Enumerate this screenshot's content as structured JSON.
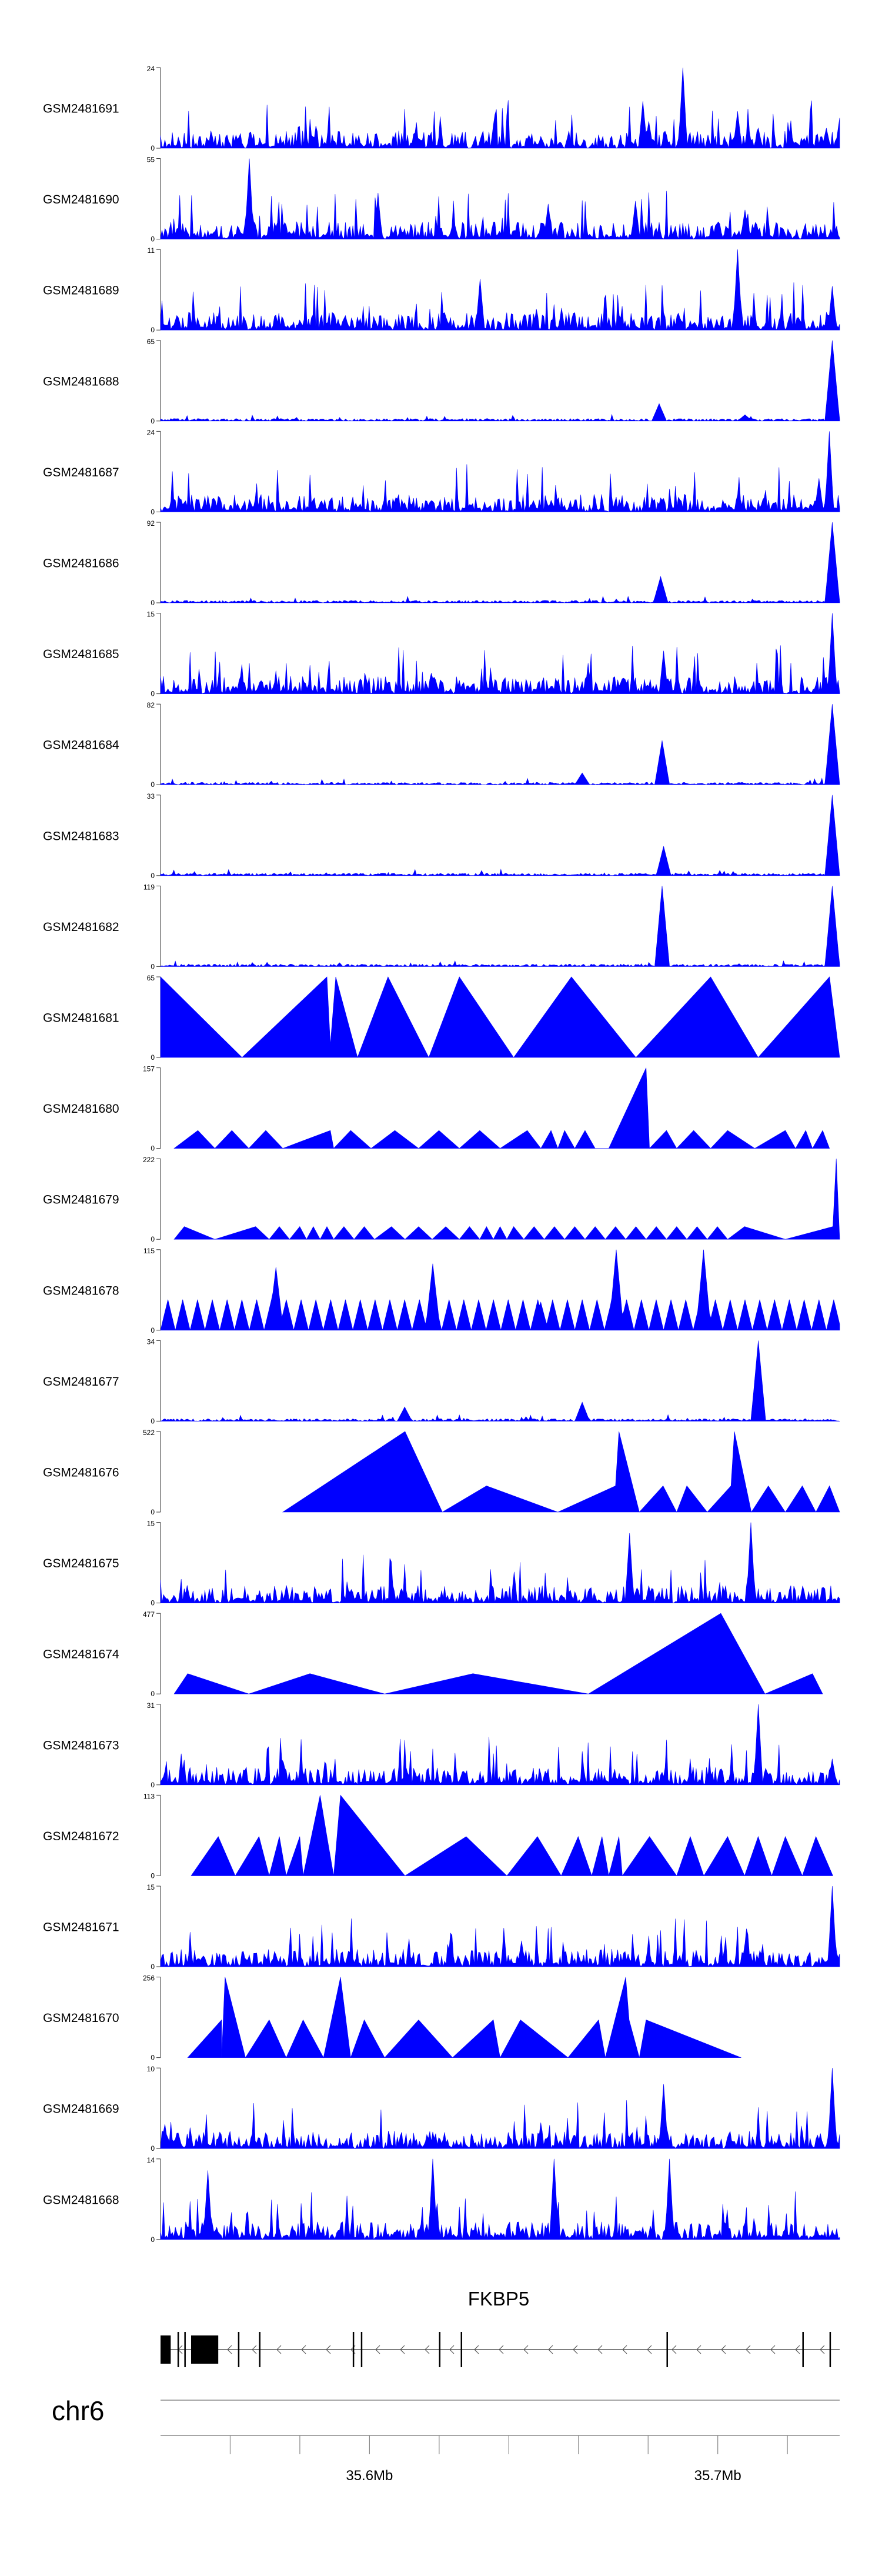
{
  "chart_data": {
    "type": "area",
    "fill_color": "#0000ff",
    "axis_color": "#333333",
    "region": {
      "chromosome": "chr6",
      "start": 35540000,
      "end": 35735000
    },
    "tracks": [
      {
        "name": "GSM2481691",
        "ymax": "24",
        "ymin": "0",
        "pattern": "noise",
        "peaks": [
          [
            0.71,
            14
          ],
          [
            0.72,
            8
          ],
          [
            0.77,
            24
          ],
          [
            0.85,
            11
          ],
          [
            0.88,
            6
          ],
          [
            0.98,
            6
          ],
          [
            1.0,
            9
          ]
        ]
      },
      {
        "name": "GSM2481690",
        "ymax": "55",
        "ymin": "0",
        "pattern": "noise",
        "peaks": [
          [
            0.13,
            55
          ],
          [
            0.32,
            30
          ],
          [
            0.57,
            24
          ],
          [
            0.7,
            26
          ],
          [
            0.86,
            20
          ]
        ]
      },
      {
        "name": "GSM2481689",
        "ymax": "11",
        "ymin": "0",
        "pattern": "noise",
        "peaks": [
          [
            0.47,
            7
          ],
          [
            0.85,
            11
          ],
          [
            0.99,
            6
          ]
        ]
      },
      {
        "name": "GSM2481688",
        "ymax": "65",
        "ymin": "0",
        "pattern": "sparse",
        "peaks": [
          [
            0.735,
            14
          ],
          [
            0.86,
            5
          ],
          [
            0.99,
            65
          ]
        ]
      },
      {
        "name": "GSM2481687",
        "ymax": "24",
        "ymin": "0",
        "pattern": "noise",
        "peaks": [
          [
            0.985,
            24
          ],
          [
            0.97,
            10
          ]
        ]
      },
      {
        "name": "GSM2481686",
        "ymax": "92",
        "ymin": "0",
        "pattern": "sparse",
        "peaks": [
          [
            0.737,
            30
          ],
          [
            0.99,
            92
          ]
        ]
      },
      {
        "name": "GSM2481685",
        "ymax": "15",
        "ymin": "0",
        "pattern": "noise",
        "peaks": [
          [
            0.74,
            8
          ],
          [
            0.99,
            15
          ]
        ]
      },
      {
        "name": "GSM2481684",
        "ymax": "82",
        "ymin": "0",
        "pattern": "sparse",
        "peaks": [
          [
            0.62,
            12
          ],
          [
            0.738,
            45
          ],
          [
            0.99,
            82
          ]
        ]
      },
      {
        "name": "GSM2481683",
        "ymax": "33",
        "ymin": "0",
        "pattern": "sparse",
        "peaks": [
          [
            0.74,
            12
          ],
          [
            0.99,
            33
          ]
        ]
      },
      {
        "name": "GSM2481682",
        "ymax": "119",
        "ymin": "0",
        "pattern": "sparse",
        "peaks": [
          [
            0.738,
            119
          ],
          [
            0.99,
            119
          ]
        ]
      },
      {
        "name": "GSM2481681",
        "ymax": "65",
        "ymin": "0",
        "pattern": "triangles",
        "vertices": [
          [
            0.0,
            65
          ],
          [
            0.12,
            0
          ],
          [
            0.245,
            65
          ],
          [
            0.25,
            10
          ],
          [
            0.258,
            65
          ],
          [
            0.29,
            0
          ],
          [
            0.335,
            65
          ],
          [
            0.395,
            0
          ],
          [
            0.44,
            65
          ],
          [
            0.52,
            0
          ],
          [
            0.605,
            65
          ],
          [
            0.7,
            0
          ],
          [
            0.81,
            65
          ],
          [
            0.88,
            0
          ],
          [
            0.985,
            65
          ],
          [
            1.0,
            0
          ]
        ]
      },
      {
        "name": "GSM2481680",
        "ymax": "157",
        "ymin": "0",
        "pattern": "triangles",
        "vertices": [
          [
            0.02,
            0
          ],
          [
            0.055,
            35
          ],
          [
            0.08,
            0
          ],
          [
            0.105,
            35
          ],
          [
            0.13,
            0
          ],
          [
            0.155,
            35
          ],
          [
            0.18,
            0
          ],
          [
            0.25,
            35
          ],
          [
            0.255,
            0
          ],
          [
            0.28,
            35
          ],
          [
            0.31,
            0
          ],
          [
            0.345,
            35
          ],
          [
            0.38,
            0
          ],
          [
            0.41,
            35
          ],
          [
            0.44,
            0
          ],
          [
            0.47,
            35
          ],
          [
            0.5,
            0
          ],
          [
            0.54,
            35
          ],
          [
            0.56,
            0
          ],
          [
            0.575,
            35
          ],
          [
            0.585,
            0
          ],
          [
            0.595,
            35
          ],
          [
            0.61,
            0
          ],
          [
            0.625,
            35
          ],
          [
            0.64,
            0
          ],
          [
            0.66,
            0
          ],
          [
            0.715,
            157
          ],
          [
            0.72,
            0
          ],
          [
            0.745,
            35
          ],
          [
            0.76,
            0
          ],
          [
            0.785,
            35
          ],
          [
            0.81,
            0
          ],
          [
            0.835,
            35
          ],
          [
            0.875,
            0
          ],
          [
            0.92,
            35
          ],
          [
            0.935,
            0
          ],
          [
            0.95,
            35
          ],
          [
            0.96,
            0
          ],
          [
            0.975,
            35
          ],
          [
            0.985,
            0
          ]
        ]
      },
      {
        "name": "GSM2481679",
        "ymax": "222",
        "ymin": "0",
        "pattern": "triangles",
        "vertices": [
          [
            0.02,
            0
          ],
          [
            0.035,
            35
          ],
          [
            0.08,
            0
          ],
          [
            0.14,
            35
          ],
          [
            0.16,
            0
          ],
          [
            0.175,
            35
          ],
          [
            0.19,
            0
          ],
          [
            0.205,
            35
          ],
          [
            0.215,
            0
          ],
          [
            0.225,
            35
          ],
          [
            0.235,
            0
          ],
          [
            0.245,
            35
          ],
          [
            0.255,
            0
          ],
          [
            0.27,
            35
          ],
          [
            0.285,
            0
          ],
          [
            0.3,
            35
          ],
          [
            0.315,
            0
          ],
          [
            0.34,
            35
          ],
          [
            0.36,
            0
          ],
          [
            0.38,
            35
          ],
          [
            0.4,
            0
          ],
          [
            0.42,
            35
          ],
          [
            0.44,
            0
          ],
          [
            0.455,
            35
          ],
          [
            0.47,
            0
          ],
          [
            0.48,
            35
          ],
          [
            0.49,
            0
          ],
          [
            0.5,
            35
          ],
          [
            0.51,
            0
          ],
          [
            0.52,
            35
          ],
          [
            0.535,
            0
          ],
          [
            0.55,
            35
          ],
          [
            0.565,
            0
          ],
          [
            0.58,
            35
          ],
          [
            0.595,
            0
          ],
          [
            0.61,
            35
          ],
          [
            0.625,
            0
          ],
          [
            0.64,
            35
          ],
          [
            0.655,
            0
          ],
          [
            0.67,
            35
          ],
          [
            0.685,
            0
          ],
          [
            0.7,
            35
          ],
          [
            0.715,
            0
          ],
          [
            0.73,
            35
          ],
          [
            0.745,
            0
          ],
          [
            0.76,
            35
          ],
          [
            0.775,
            0
          ],
          [
            0.79,
            35
          ],
          [
            0.805,
            0
          ],
          [
            0.82,
            35
          ],
          [
            0.835,
            0
          ],
          [
            0.86,
            35
          ],
          [
            0.92,
            0
          ],
          [
            0.99,
            35
          ],
          [
            0.995,
            222
          ],
          [
            1.0,
            0
          ]
        ]
      },
      {
        "name": "GSM2481678",
        "ymax": "115",
        "ymin": "0",
        "pattern": "triangles-dense",
        "peaks": [
          [
            0.17,
            90
          ],
          [
            0.4,
            95
          ],
          [
            0.56,
            40
          ],
          [
            0.67,
            115
          ],
          [
            0.8,
            115
          ]
        ]
      },
      {
        "name": "GSM2481677",
        "ymax": "34",
        "ymin": "0",
        "pattern": "sparse",
        "peaks": [
          [
            0.36,
            6
          ],
          [
            0.62,
            8
          ],
          [
            0.88,
            34
          ]
        ]
      },
      {
        "name": "GSM2481676",
        "ymax": "522",
        "ymin": "0",
        "pattern": "triangles",
        "vertices": [
          [
            0.18,
            0
          ],
          [
            0.36,
            522
          ],
          [
            0.415,
            0
          ],
          [
            0.48,
            170
          ],
          [
            0.585,
            0
          ],
          [
            0.67,
            170
          ],
          [
            0.675,
            522
          ],
          [
            0.705,
            0
          ],
          [
            0.74,
            170
          ],
          [
            0.76,
            0
          ],
          [
            0.775,
            170
          ],
          [
            0.805,
            0
          ],
          [
            0.84,
            170
          ],
          [
            0.845,
            522
          ],
          [
            0.87,
            0
          ],
          [
            0.895,
            170
          ],
          [
            0.92,
            0
          ],
          [
            0.945,
            170
          ],
          [
            0.965,
            0
          ],
          [
            0.985,
            170
          ],
          [
            1.0,
            0
          ]
        ]
      },
      {
        "name": "GSM2481675",
        "ymax": "15",
        "ymin": "0",
        "pattern": "noise",
        "peaks": [
          [
            0.87,
            15
          ],
          [
            0.69,
            13
          ]
        ]
      },
      {
        "name": "GSM2481674",
        "ymax": "477",
        "ymin": "0",
        "pattern": "triangles",
        "vertices": [
          [
            0.02,
            0
          ],
          [
            0.04,
            120
          ],
          [
            0.13,
            0
          ],
          [
            0.22,
            120
          ],
          [
            0.33,
            0
          ],
          [
            0.46,
            120
          ],
          [
            0.63,
            0
          ],
          [
            0.825,
            477
          ],
          [
            0.89,
            0
          ],
          [
            0.96,
            120
          ],
          [
            0.975,
            0
          ]
        ]
      },
      {
        "name": "GSM2481673",
        "ymax": "31",
        "ymin": "0",
        "pattern": "noise",
        "peaks": [
          [
            0.88,
            31
          ],
          [
            0.99,
            10
          ]
        ]
      },
      {
        "name": "GSM2481672",
        "ymax": "113",
        "ymin": "0",
        "pattern": "triangles",
        "vertices": [
          [
            0.045,
            0
          ],
          [
            0.085,
            55
          ],
          [
            0.11,
            0
          ],
          [
            0.145,
            55
          ],
          [
            0.16,
            0
          ],
          [
            0.175,
            55
          ],
          [
            0.185,
            0
          ],
          [
            0.205,
            55
          ],
          [
            0.21,
            0
          ],
          [
            0.235,
            113
          ],
          [
            0.245,
            55
          ],
          [
            0.255,
            0
          ],
          [
            0.265,
            113
          ],
          [
            0.36,
            0
          ],
          [
            0.45,
            55
          ],
          [
            0.51,
            0
          ],
          [
            0.555,
            55
          ],
          [
            0.59,
            0
          ],
          [
            0.615,
            55
          ],
          [
            0.635,
            0
          ],
          [
            0.65,
            55
          ],
          [
            0.66,
            0
          ],
          [
            0.675,
            55
          ],
          [
            0.68,
            0
          ],
          [
            0.72,
            55
          ],
          [
            0.76,
            0
          ],
          [
            0.78,
            55
          ],
          [
            0.8,
            0
          ],
          [
            0.835,
            55
          ],
          [
            0.86,
            0
          ],
          [
            0.88,
            55
          ],
          [
            0.9,
            0
          ],
          [
            0.92,
            55
          ],
          [
            0.945,
            0
          ],
          [
            0.965,
            55
          ],
          [
            0.99,
            0
          ]
        ]
      },
      {
        "name": "GSM2481671",
        "ymax": "15",
        "ymin": "0",
        "pattern": "noise",
        "peaks": [
          [
            0.99,
            15
          ]
        ]
      },
      {
        "name": "GSM2481670",
        "ymax": "256",
        "ymin": "0",
        "pattern": "triangles",
        "vertices": [
          [
            0.04,
            0
          ],
          [
            0.09,
            120
          ],
          [
            0.09,
            0
          ],
          [
            0.095,
            256
          ],
          [
            0.125,
            0
          ],
          [
            0.16,
            120
          ],
          [
            0.185,
            0
          ],
          [
            0.21,
            120
          ],
          [
            0.24,
            0
          ],
          [
            0.265,
            256
          ],
          [
            0.28,
            0
          ],
          [
            0.3,
            120
          ],
          [
            0.33,
            0
          ],
          [
            0.38,
            120
          ],
          [
            0.43,
            0
          ],
          [
            0.49,
            120
          ],
          [
            0.5,
            0
          ],
          [
            0.53,
            120
          ],
          [
            0.6,
            0
          ],
          [
            0.645,
            120
          ],
          [
            0.655,
            0
          ],
          [
            0.685,
            256
          ],
          [
            0.69,
            120
          ],
          [
            0.705,
            0
          ],
          [
            0.715,
            120
          ],
          [
            0.855,
            0
          ]
        ]
      },
      {
        "name": "GSM2481669",
        "ymax": "10",
        "ymin": "0",
        "pattern": "noise",
        "peaks": [
          [
            0.74,
            8
          ],
          [
            0.99,
            10
          ]
        ]
      },
      {
        "name": "GSM2481668",
        "ymax": "14",
        "ymin": "0",
        "pattern": "noise",
        "peaks": [
          [
            0.07,
            12
          ],
          [
            0.4,
            14
          ],
          [
            0.58,
            14
          ],
          [
            0.75,
            14
          ]
        ]
      }
    ],
    "gene": {
      "name": "FKBP5",
      "strand": "-",
      "exons": [
        [
          0.0,
          0.015
        ],
        [
          0.025,
          0.028
        ],
        [
          0.035,
          0.038
        ],
        [
          0.045,
          0.085
        ],
        [
          0.114,
          0.116
        ],
        [
          0.145,
          0.147
        ],
        [
          0.283,
          0.285
        ],
        [
          0.295,
          0.297
        ],
        [
          0.41,
          0.412
        ],
        [
          0.442,
          0.444
        ],
        [
          0.745,
          0.747
        ],
        [
          0.945,
          0.947
        ],
        [
          0.985,
          0.987
        ]
      ]
    },
    "ideogram_label": "chr6",
    "axis": {
      "ticks": [
        35560000,
        35580000,
        35600000,
        35620000,
        35640000,
        35660000,
        35680000,
        35700000,
        35720000
      ],
      "labeled_ticks": [
        {
          "value": 35600000,
          "label": "35.6Mb"
        },
        {
          "value": 35700000,
          "label": "35.7Mb"
        }
      ]
    }
  }
}
